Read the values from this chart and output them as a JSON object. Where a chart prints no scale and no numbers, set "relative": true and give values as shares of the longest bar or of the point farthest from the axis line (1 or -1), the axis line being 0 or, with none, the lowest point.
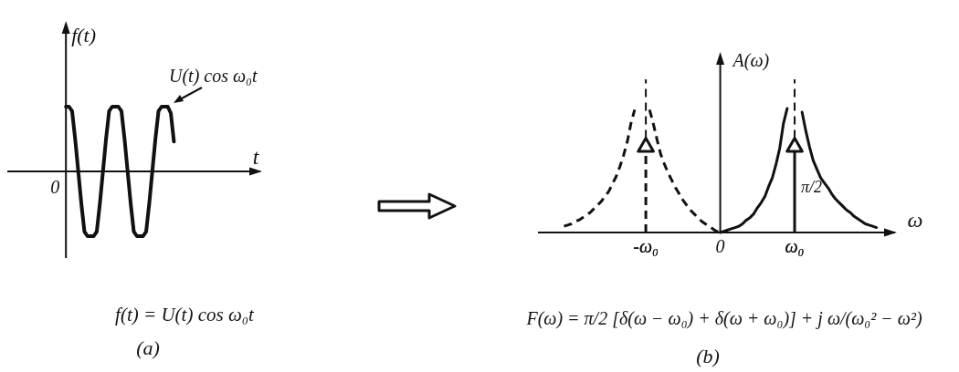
{
  "chart_data": [
    {
      "type": "line",
      "relative": true,
      "xlabel": "t",
      "ylabel": "f(t)",
      "line_style": "solid",
      "marker": "none",
      "categories": [
        null,
        null,
        null,
        null,
        null,
        null,
        null,
        null,
        null,
        null,
        null,
        null,
        null,
        null,
        null,
        null,
        null,
        null,
        null,
        null,
        null,
        null,
        null,
        null,
        null,
        null,
        null,
        null,
        null,
        null,
        null,
        null,
        null,
        null,
        null,
        null,
        null,
        null,
        null,
        null,
        null,
        null,
        null,
        null,
        null,
        null,
        null,
        null,
        null,
        null,
        null,
        null,
        null,
        null,
        null,
        null,
        null,
        null,
        null,
        null,
        null,
        null,
        null,
        null,
        null,
        null,
        null,
        null,
        null,
        null,
        null,
        null,
        null,
        null,
        null,
        null,
        null,
        null,
        null,
        null,
        null,
        null,
        null
      ],
      "series": [
        {
          "color": "#111111",
          "values": [
            null,
            null,
            null,
            null,
            null,
            null,
            null,
            null,
            null,
            null,
            null,
            null,
            null,
            null,
            null,
            null,
            null,
            null,
            null,
            1,
            1,
            0.93,
            0.5,
            0,
            -0.5,
            -0.93,
            -1,
            -1,
            -1,
            -0.93,
            -0.5,
            0,
            0.5,
            0.93,
            1,
            1,
            1,
            0.93,
            0.5,
            0,
            -0.5,
            -0.93,
            -1,
            -1,
            -1,
            -0.93,
            -0.5,
            0,
            0.5,
            0.93,
            1,
            1,
            1,
            0.9,
            0.46,
            null,
            null,
            null,
            null,
            null,
            null,
            null,
            null,
            null,
            null,
            null,
            null,
            null,
            null,
            null,
            null,
            null,
            null,
            null,
            null,
            null,
            null,
            null,
            null,
            null,
            null,
            null,
            null
          ]
        }
      ],
      "annotations": [
        "U(t) cos ω₀t",
        "f(t) = U(t) cos ω₀t",
        "(a)",
        "0"
      ]
    },
    {
      "type": "line",
      "relative": true,
      "xlabel": "ω",
      "ylabel": "A(ω)",
      "marker": "none",
      "categories": [
        null,
        null,
        null,
        null,
        null,
        null,
        null,
        null,
        null,
        null,
        null,
        null,
        null,
        null,
        null,
        null,
        null,
        null,
        null,
        null,
        null,
        null,
        null,
        null,
        null,
        null,
        null,
        null,
        null,
        "-ω₀",
        null,
        null,
        null,
        null,
        null,
        null,
        null,
        null,
        null,
        null,
        null,
        null,
        null,
        null,
        null,
        null,
        null,
        null,
        null,
        "0",
        null,
        null,
        null,
        null,
        null,
        null,
        null,
        null,
        null,
        null,
        null,
        null,
        null,
        null,
        null,
        null,
        null,
        null,
        null,
        "ω₀",
        null,
        null,
        null,
        null,
        null,
        null,
        null,
        null,
        null,
        null,
        null,
        null,
        null,
        null,
        null,
        null,
        null,
        null,
        null,
        null,
        null,
        null,
        null,
        null,
        null,
        null,
        null
      ],
      "series": [
        {
          "color": "#111111",
          "line_style": "dashed",
          "values": [
            null,
            null,
            null,
            null,
            null,
            null,
            null,
            0.05,
            0.06,
            0.07,
            0.09,
            0.1,
            0.12,
            0.14,
            0.16,
            0.19,
            0.22,
            0.25,
            0.29,
            0.33,
            0.39,
            0.45,
            0.53,
            0.62,
            0.73,
            0.88,
            0.99,
            null,
            null,
            null,
            0.99,
            0.88,
            0.75,
            0.63,
            0.55,
            0.48,
            0.42,
            0.36,
            0.31,
            0.26,
            0.22,
            0.18,
            0.15,
            0.12,
            0.09,
            0.07,
            0.05,
            0.03,
            0.01,
            0,
            null,
            null,
            null,
            null,
            null,
            null,
            null,
            null,
            null,
            null,
            null,
            null,
            null,
            null,
            null,
            null,
            null,
            null,
            null,
            null,
            null,
            null,
            null,
            null,
            null,
            null,
            null,
            null,
            null,
            null,
            null,
            null,
            null,
            null,
            null,
            null,
            null,
            null,
            null,
            null,
            null,
            null,
            null,
            null,
            null,
            null,
            null
          ]
        },
        {
          "color": "#111111",
          "line_style": "solid",
          "values": [
            null,
            null,
            null,
            null,
            null,
            null,
            null,
            null,
            null,
            null,
            null,
            null,
            null,
            null,
            null,
            null,
            null,
            null,
            null,
            null,
            null,
            null,
            null,
            null,
            null,
            null,
            null,
            null,
            null,
            null,
            null,
            null,
            null,
            null,
            null,
            null,
            null,
            null,
            null,
            null,
            null,
            null,
            null,
            null,
            null,
            null,
            null,
            null,
            null,
            0,
            0.01,
            0.02,
            0.03,
            0.04,
            0.05,
            0.07,
            0.1,
            0.12,
            0.15,
            0.2,
            0.24,
            0.29,
            0.37,
            0.44,
            0.55,
            0.68,
            0.88,
            1,
            null,
            null,
            null,
            0.97,
            0.82,
            0.69,
            0.58,
            0.51,
            0.44,
            0.4,
            0.36,
            0.31,
            0.27,
            0.24,
            0.21,
            0.18,
            0.16,
            0.13,
            0.11,
            0.09,
            0.07,
            0.06,
            0.05,
            0.04,
            null,
            null,
            null,
            null,
            null
          ]
        },
        {
          "type": "lollipop",
          "color": "#111111",
          "line_style": "dashed",
          "marker": "triangle",
          "values": [
            null,
            null,
            null,
            null,
            null,
            null,
            null,
            null,
            null,
            null,
            null,
            null,
            null,
            null,
            null,
            null,
            null,
            null,
            null,
            null,
            null,
            null,
            null,
            null,
            null,
            null,
            null,
            null,
            null,
            0.69,
            null,
            null,
            null,
            null,
            null,
            null,
            null,
            null,
            null,
            null,
            null,
            null,
            null,
            null,
            null,
            null,
            null,
            null,
            null,
            null,
            null,
            null,
            null,
            null,
            null,
            null,
            null,
            null,
            null,
            null,
            null,
            null,
            null,
            null,
            null,
            null,
            null,
            null,
            null,
            null,
            null,
            null,
            null,
            null,
            null,
            null,
            null,
            null,
            null,
            null,
            null,
            null,
            null,
            null,
            null,
            null,
            null,
            null,
            null,
            null,
            null,
            null,
            null,
            null,
            null,
            null,
            null
          ]
        },
        {
          "type": "lollipop",
          "color": "#111111",
          "line_style": "solid",
          "marker": "triangle",
          "values": [
            null,
            null,
            null,
            null,
            null,
            null,
            null,
            null,
            null,
            null,
            null,
            null,
            null,
            null,
            null,
            null,
            null,
            null,
            null,
            null,
            null,
            null,
            null,
            null,
            null,
            null,
            null,
            null,
            null,
            null,
            null,
            null,
            null,
            null,
            null,
            null,
            null,
            null,
            null,
            null,
            null,
            null,
            null,
            null,
            null,
            null,
            null,
            null,
            null,
            null,
            null,
            null,
            null,
            null,
            null,
            null,
            null,
            null,
            null,
            null,
            null,
            null,
            null,
            null,
            null,
            null,
            null,
            null,
            null,
            0.69,
            null,
            null,
            null,
            null,
            null,
            null,
            null,
            null,
            null,
            null,
            null,
            null,
            null,
            null,
            null,
            null,
            null,
            null,
            null,
            null,
            null,
            null,
            null,
            null,
            null,
            null,
            null
          ]
        }
      ],
      "ref_lines": [
        {
          "axis": "x",
          "value": "-ω₀",
          "line_style": "dashed",
          "color": "#111111"
        },
        {
          "axis": "x",
          "value": "ω₀",
          "line_style": "dashed",
          "color": "#111111"
        }
      ],
      "annotations": [
        "F(ω) = π/2 [δ(ω − ω₀) + δ(ω + ω₀)] + j ω/(ω₀² − ω²)",
        "(b)",
        "π/2"
      ]
    }
  ]
}
